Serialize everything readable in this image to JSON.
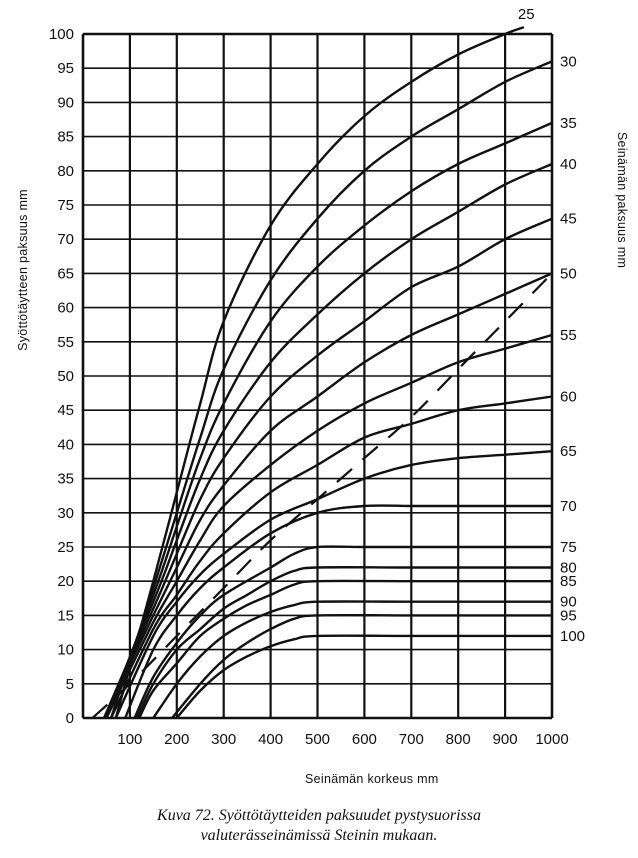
{
  "chart_data": {
    "type": "line",
    "xlabel": "Seinämän korkeus mm",
    "ylabel": "Syöttötäytteen paksuus mm",
    "right_label": "Seinämän paksuus mm",
    "xlim": [
      0,
      1000
    ],
    "ylim": [
      0,
      100
    ],
    "x_ticks": [
      100,
      200,
      300,
      400,
      500,
      600,
      700,
      800,
      900,
      1000
    ],
    "y_ticks": [
      0,
      5,
      10,
      15,
      20,
      25,
      30,
      35,
      40,
      45,
      50,
      55,
      60,
      65,
      70,
      75,
      80,
      85,
      90,
      95,
      100
    ],
    "grid": true,
    "series": [
      {
        "name": "25",
        "x": [
          70,
          150,
          200,
          250,
          300,
          400,
          500,
          600,
          700,
          800,
          900,
          940
        ],
        "y": [
          0,
          20,
          33,
          46,
          58,
          72,
          81,
          88,
          93,
          97,
          100,
          101
        ]
      },
      {
        "name": "30",
        "x": [
          60,
          150,
          200,
          250,
          300,
          400,
          500,
          600,
          700,
          800,
          900,
          1000
        ],
        "y": [
          0,
          19,
          30,
          41,
          51,
          64,
          73,
          80,
          85,
          89,
          93,
          96
        ]
      },
      {
        "name": "35",
        "x": [
          50,
          150,
          200,
          250,
          300,
          400,
          500,
          600,
          700,
          800,
          900,
          1000
        ],
        "y": [
          0,
          18,
          28,
          38,
          46,
          58,
          66,
          72,
          77,
          81,
          84,
          87
        ]
      },
      {
        "name": "40",
        "x": [
          45,
          150,
          200,
          250,
          300,
          400,
          500,
          600,
          700,
          800,
          900,
          1000
        ],
        "y": [
          0,
          17,
          26,
          35,
          42,
          52,
          59,
          65,
          70,
          74,
          78,
          81
        ]
      },
      {
        "name": "45",
        "x": [
          45,
          150,
          200,
          250,
          300,
          400,
          500,
          600,
          700,
          800,
          900,
          1000
        ],
        "y": [
          0,
          16,
          24,
          32,
          38,
          47,
          53,
          58,
          63,
          66,
          70,
          73
        ]
      },
      {
        "name": "50",
        "x": [
          45,
          150,
          200,
          250,
          300,
          400,
          500,
          600,
          700,
          800,
          900,
          1000
        ],
        "y": [
          0,
          15,
          22,
          29,
          34,
          42,
          47,
          52,
          56,
          59,
          62,
          65
        ]
      },
      {
        "name": "55",
        "x": [
          50,
          150,
          200,
          250,
          300,
          400,
          500,
          600,
          700,
          800,
          900,
          1000
        ],
        "y": [
          0,
          14,
          20,
          26,
          31,
          37,
          42,
          46,
          49,
          52,
          54,
          56
        ]
      },
      {
        "name": "60",
        "x": [
          60,
          150,
          200,
          250,
          300,
          400,
          500,
          600,
          700,
          800,
          900,
          1000
        ],
        "y": [
          0,
          13,
          18,
          23,
          27,
          33,
          37,
          41,
          43,
          45,
          46,
          47
        ]
      },
      {
        "name": "65",
        "x": [
          70,
          150,
          200,
          250,
          300,
          400,
          500,
          600,
          700,
          800,
          900,
          1000
        ],
        "y": [
          0,
          12,
          17,
          21,
          24,
          29,
          32,
          35,
          37,
          38,
          38.5,
          39
        ]
      },
      {
        "name": "70",
        "x": [
          90,
          150,
          200,
          250,
          300,
          400,
          500,
          600,
          700,
          800,
          900,
          1000
        ],
        "y": [
          0,
          10,
          15,
          19,
          22,
          27,
          30,
          31,
          31,
          31,
          31,
          31
        ]
      },
      {
        "name": "75",
        "x": [
          110,
          150,
          200,
          250,
          300,
          400,
          450,
          500,
          600,
          800,
          1000
        ],
        "y": [
          0,
          6,
          11,
          15,
          18,
          22,
          24,
          25,
          25,
          25,
          25
        ]
      },
      {
        "name": "80",
        "x": [
          115,
          150,
          200,
          250,
          300,
          350,
          400,
          450,
          500,
          700,
          1000
        ],
        "y": [
          0,
          5,
          10,
          13,
          16,
          18,
          20,
          21.5,
          22,
          22,
          22
        ]
      },
      {
        "name": "85",
        "x": [
          120,
          150,
          200,
          250,
          300,
          350,
          400,
          450,
          500,
          700,
          1000
        ],
        "y": [
          0,
          4,
          8,
          12,
          14.5,
          16.5,
          18,
          19.5,
          20,
          20,
          20
        ]
      },
      {
        "name": "90",
        "x": [
          150,
          200,
          250,
          300,
          350,
          400,
          450,
          500,
          700,
          1000
        ],
        "y": [
          0,
          5,
          9,
          12,
          14,
          15.5,
          16.5,
          17,
          17,
          17
        ]
      },
      {
        "name": "95",
        "x": [
          190,
          250,
          300,
          350,
          400,
          450,
          500,
          700,
          1000
        ],
        "y": [
          0,
          5,
          8.5,
          11,
          13,
          14.5,
          15,
          15,
          15
        ]
      },
      {
        "name": "100",
        "x": [
          200,
          250,
          300,
          350,
          400,
          450,
          500,
          700,
          1000
        ],
        "y": [
          0,
          4,
          7,
          9,
          10.5,
          11.5,
          12,
          12,
          12
        ]
      }
    ],
    "dashed_line": {
      "x": [
        20,
        100,
        200,
        300,
        400,
        500,
        600,
        700,
        800,
        900,
        1000
      ],
      "y": [
        0,
        5,
        12,
        19,
        26,
        32,
        38,
        44,
        51,
        58,
        65
      ]
    }
  },
  "caption": {
    "line1": "Kuva 72. Syöttötäytteiden paksuudet pystysuorissa",
    "line2": "valuterässeinämissä Steinin mukaan."
  }
}
